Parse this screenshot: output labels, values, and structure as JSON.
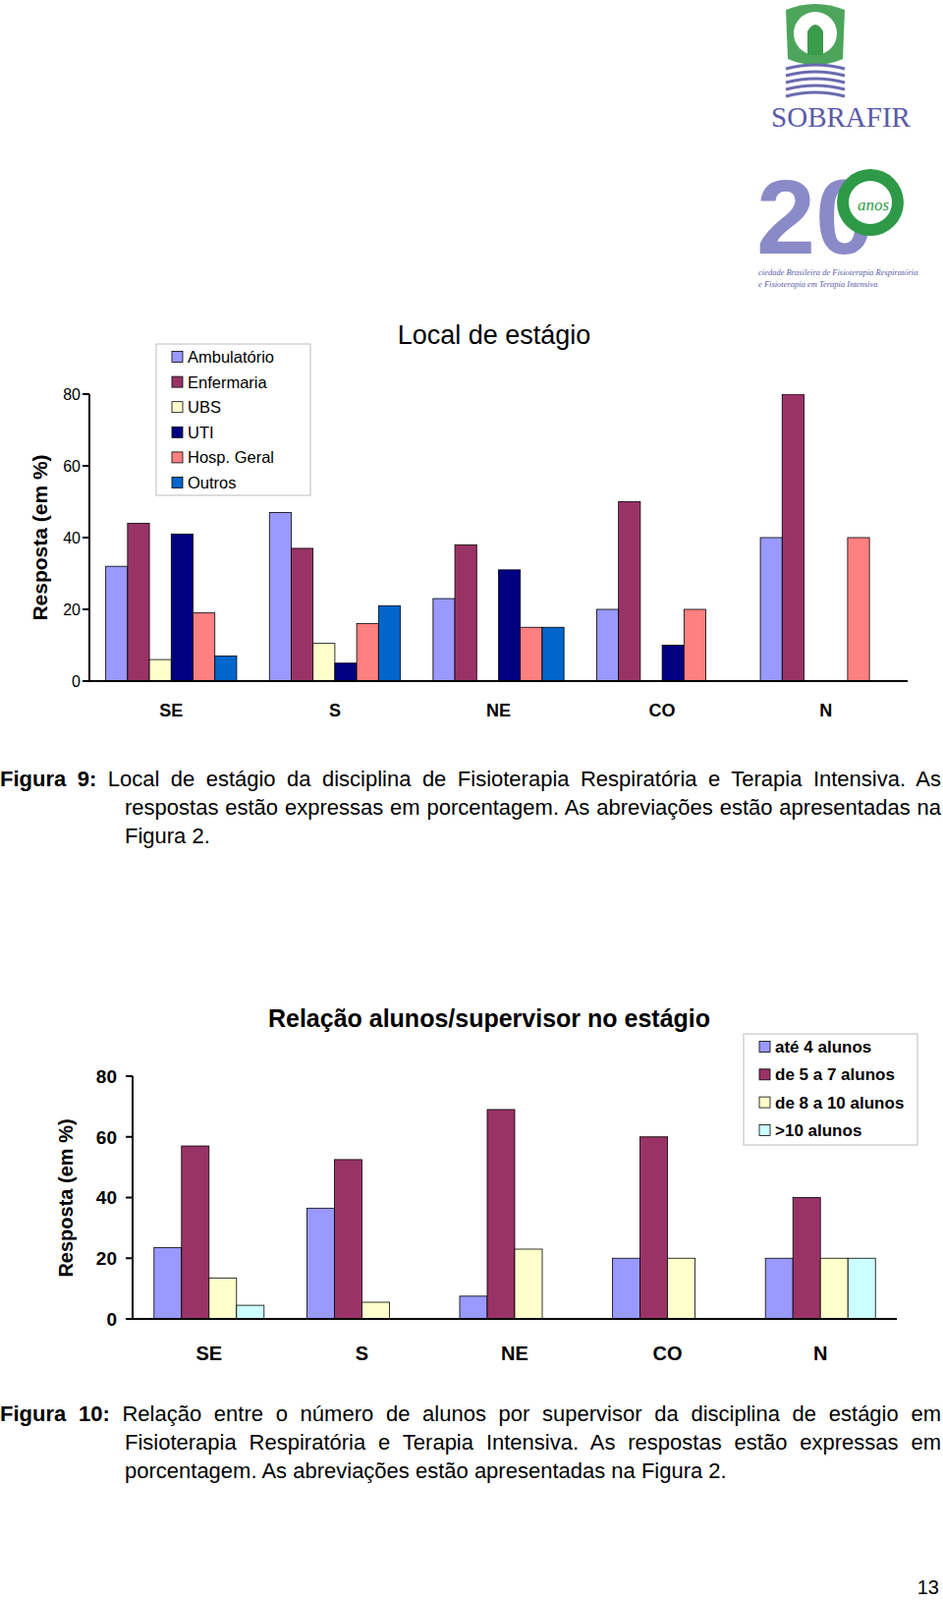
{
  "header": {
    "logo_name": "SOBRAFIR",
    "anniversary_number": "20",
    "anniversary_word": "anos",
    "society_lines": [
      "ciedade Brasileira de Fisioterapia Respiratória",
      "e Fisioterapia em Terapia Intensiva"
    ]
  },
  "chart_data": [
    {
      "type": "bar",
      "title": "Local de estágio",
      "y_label": "Resposta (em %)",
      "categories": [
        "SE",
        "S",
        "NE",
        "CO",
        "N"
      ],
      "ylim": [
        0,
        80
      ],
      "yticks": [
        0,
        20,
        40,
        60,
        80
      ],
      "grid": false,
      "legend": "top-left",
      "series": [
        {
          "name": "Ambulatório",
          "color": "#9999ff",
          "values": [
            32,
            47,
            23,
            20,
            40
          ]
        },
        {
          "name": "Enfermaria",
          "color": "#993366",
          "values": [
            44,
            37,
            38,
            50,
            80
          ]
        },
        {
          "name": "UBS",
          "color": "#ffffcc",
          "values": [
            6,
            10.5,
            0,
            0,
            0
          ]
        },
        {
          "name": "UTI",
          "color": "#000080",
          "values": [
            41,
            5,
            31,
            10,
            0
          ]
        },
        {
          "name": "Hosp. Geral",
          "color": "#ff8080",
          "values": [
            19,
            16,
            15,
            20,
            40
          ]
        },
        {
          "name": "Outros",
          "color": "#0066cc",
          "values": [
            7,
            21,
            15,
            0,
            0
          ]
        }
      ]
    },
    {
      "type": "bar",
      "title": "Relação alunos/supervisor no estágio",
      "y_label": "Resposta (em %)",
      "categories": [
        "SE",
        "S",
        "NE",
        "CO",
        "N"
      ],
      "ylim": [
        0,
        80
      ],
      "yticks": [
        0,
        20,
        40,
        60,
        80
      ],
      "grid": false,
      "legend": "top-right",
      "series": [
        {
          "name": "até 4 alunos",
          "color": "#9999ff",
          "values": [
            23.5,
            36.5,
            7.5,
            20,
            20
          ]
        },
        {
          "name": "de 5 a 7 alunos",
          "color": "#993366",
          "values": [
            57,
            52.5,
            69,
            60,
            40
          ]
        },
        {
          "name": "de 8 a 10 alunos",
          "color": "#ffffcc",
          "values": [
            13.5,
            5.5,
            23,
            20,
            20
          ]
        },
        {
          "name": ">10 alunos",
          "color": "#ccffff",
          "values": [
            4.5,
            0,
            0,
            0,
            20
          ]
        }
      ]
    }
  ],
  "captions": [
    {
      "label": "Figura 9:",
      "text": "Local de estágio da disciplina de Fisioterapia Respiratória e Terapia Intensiva. As respostas estão expressas em porcentagem. As abreviações estão apresentadas na Figura 2."
    },
    {
      "label": "Figura 10:",
      "text": "Relação entre o número de alunos por supervisor da disciplina de estágio em Fisioterapia Respiratória e Terapia Intensiva. As respostas estão expressas em porcentagem. As abreviações estão apresentadas na Figura 2."
    }
  ],
  "page_number": "13"
}
